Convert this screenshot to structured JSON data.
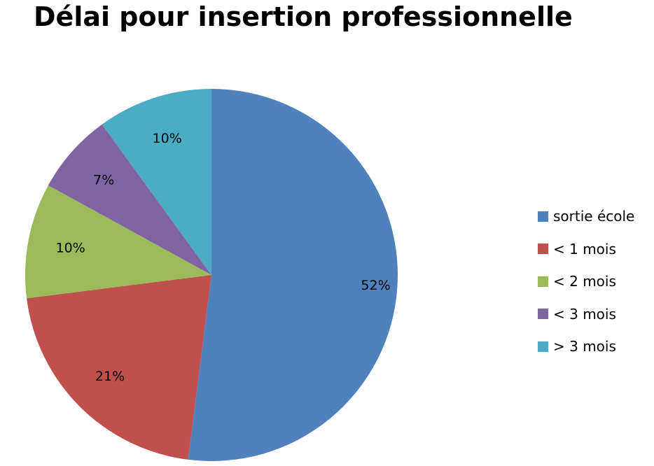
{
  "chart_data": {
    "type": "pie",
    "title": "Délai pour insertion professionnelle",
    "categories": [
      "sortie école",
      "< 1 mois",
      "< 2 mois",
      "< 3 mois",
      "> 3 mois"
    ],
    "values": [
      52,
      21,
      10,
      7,
      10
    ],
    "data_labels": [
      "52%",
      "21%",
      "10%",
      "7%",
      "10%"
    ],
    "colors": [
      "#4F81BD",
      "#C0504D",
      "#9BBB59",
      "#8064A2",
      "#4BACC6"
    ],
    "legend_position": "right",
    "start": "top",
    "direction": "clockwise"
  }
}
